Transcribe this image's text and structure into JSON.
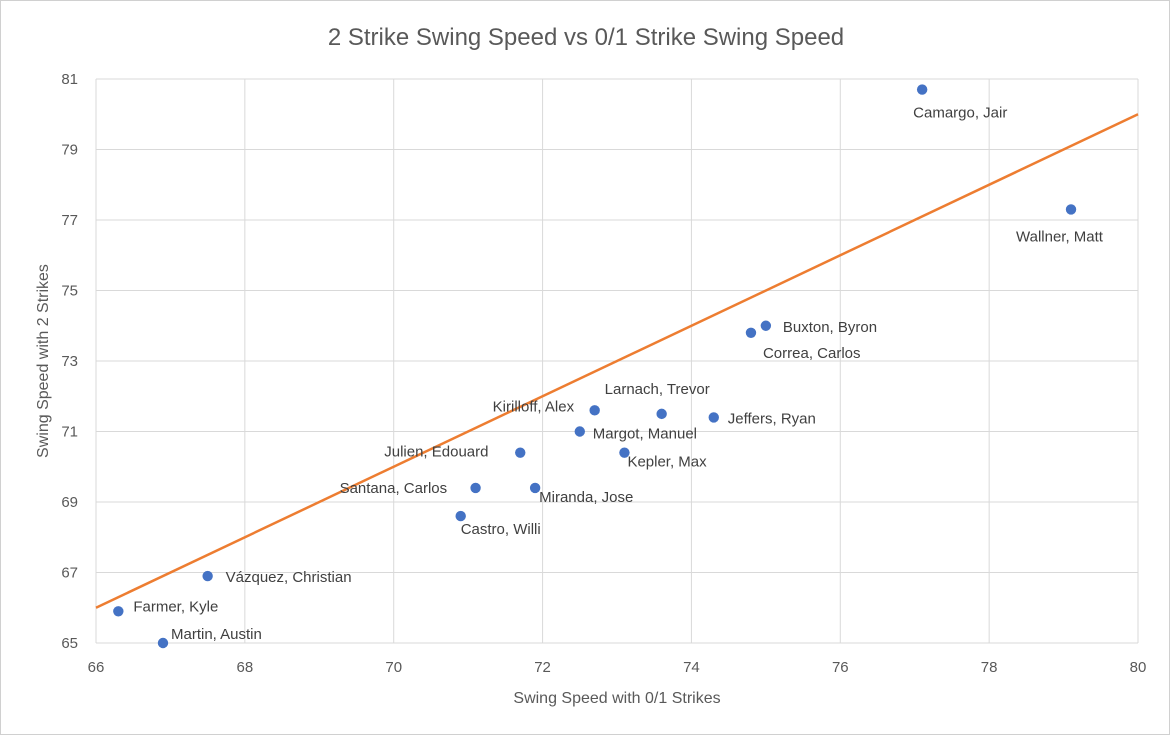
{
  "chart_data": {
    "type": "scatter",
    "title": "2 Strike Swing Speed vs 0/1 Strike Swing Speed",
    "xlabel": "Swing Speed with 0/1 Strikes",
    "ylabel": "Swing Speed with 2 Strikes",
    "xlim": [
      66,
      80
    ],
    "ylim": [
      65,
      81
    ],
    "x_ticks": [
      66,
      68,
      70,
      72,
      74,
      76,
      78,
      80
    ],
    "y_ticks": [
      65,
      67,
      69,
      71,
      73,
      75,
      77,
      79,
      81
    ],
    "grid": true,
    "marker_color": "#4472c4",
    "points": [
      {
        "name": "Camargo, Jair",
        "x": 77.1,
        "y": 80.7
      },
      {
        "name": "Wallner, Matt",
        "x": 79.1,
        "y": 77.3
      },
      {
        "name": "Buxton, Byron",
        "x": 75.0,
        "y": 74.0
      },
      {
        "name": "Correa, Carlos",
        "x": 74.8,
        "y": 73.8
      },
      {
        "name": "Larnach, Trevor",
        "x": 73.6,
        "y": 71.5
      },
      {
        "name": "Kirilloff, Alex",
        "x": 72.7,
        "y": 71.6
      },
      {
        "name": "Jeffers, Ryan",
        "x": 74.3,
        "y": 71.4
      },
      {
        "name": "Margot, Manuel",
        "x": 72.5,
        "y": 71.0
      },
      {
        "name": "Julien, Edouard",
        "x": 71.7,
        "y": 70.4
      },
      {
        "name": "Kepler, Max",
        "x": 73.1,
        "y": 70.4
      },
      {
        "name": "Santana, Carlos",
        "x": 71.1,
        "y": 69.4
      },
      {
        "name": "Miranda, Jose",
        "x": 71.9,
        "y": 69.4
      },
      {
        "name": "Castro, Willi",
        "x": 70.9,
        "y": 68.6
      },
      {
        "name": "Vázquez, Christian",
        "x": 67.5,
        "y": 66.9
      },
      {
        "name": "Farmer, Kyle",
        "x": 66.3,
        "y": 65.9
      },
      {
        "name": "Martin, Austin",
        "x": 66.9,
        "y": 65.0
      }
    ],
    "trendline": {
      "color": "#ed7d31",
      "x": [
        66,
        80
      ],
      "y": [
        66,
        80
      ]
    }
  }
}
